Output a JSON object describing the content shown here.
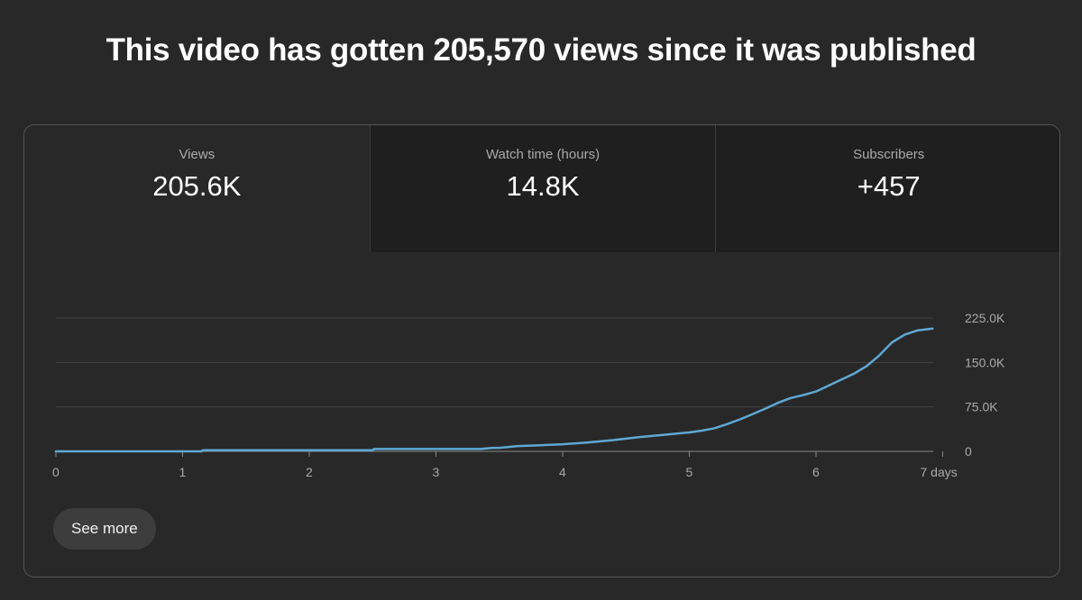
{
  "headline": "This video has gotten 205,570 views since it was published",
  "tabs": [
    {
      "label": "Views",
      "value": "205.6K"
    },
    {
      "label": "Watch time (hours)",
      "value": "14.8K"
    },
    {
      "label": "Subscribers",
      "value": "+457"
    }
  ],
  "see_more_label": "See more",
  "colors": {
    "background": "#282828",
    "line": "#5fa8d3"
  },
  "chart_data": {
    "type": "line",
    "title": "",
    "xlabel": "",
    "ylabel": "",
    "x_ticks": [
      "0",
      "1",
      "2",
      "3",
      "4",
      "5",
      "6",
      "7 days"
    ],
    "y_ticks": [
      "0",
      "75.0K",
      "150.0K",
      "225.0K"
    ],
    "xlim": [
      0,
      7
    ],
    "ylim": [
      0,
      225000
    ],
    "grid": true,
    "series": [
      {
        "x": [
          0,
          0.5,
          1.0,
          1.15,
          1.16,
          1.5,
          2.0,
          2.5,
          2.51,
          3.0,
          3.35,
          3.4,
          3.45,
          3.5,
          3.6,
          3.65,
          3.8,
          4.0,
          4.2,
          4.4,
          4.6,
          4.8,
          5.0,
          5.1,
          5.2,
          5.3,
          5.4,
          5.5,
          5.6,
          5.7,
          5.8,
          5.9,
          6.0,
          6.1,
          6.2,
          6.3,
          6.4,
          6.5,
          6.6,
          6.7,
          6.8,
          6.92
        ],
        "y": [
          0,
          0,
          0,
          0,
          2000,
          2000,
          2000,
          2000,
          4000,
          4000,
          4000,
          5000,
          6000,
          6000,
          8000,
          9000,
          10000,
          12000,
          15000,
          19000,
          24000,
          28000,
          32000,
          35000,
          39000,
          46000,
          54000,
          63000,
          72000,
          82000,
          90000,
          95000,
          101000,
          111000,
          121000,
          131000,
          144000,
          162000,
          184000,
          197000,
          204000,
          207000
        ]
      }
    ]
  }
}
